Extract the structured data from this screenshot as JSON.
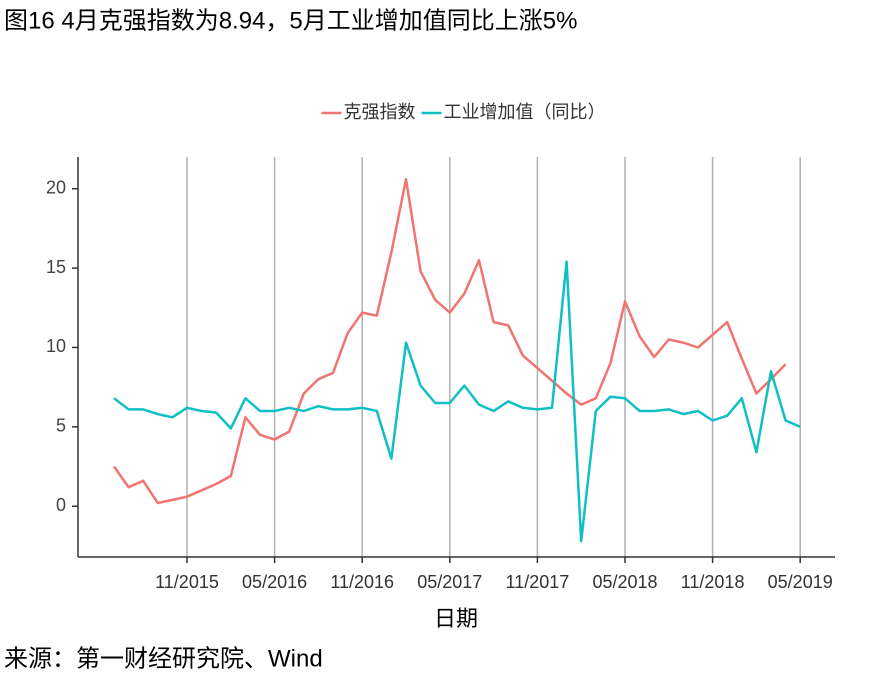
{
  "chart_data": {
    "type": "line",
    "title": "图16 4月克强指数为8.94，5月工业增加值同比上涨5%",
    "x_label": "日期",
    "source": "来源：第一财经研究院、Wind",
    "x": [
      "06/2015",
      "07/2015",
      "08/2015",
      "09/2015",
      "10/2015",
      "11/2015",
      "12/2015",
      "01/2016",
      "02/2016",
      "03/2016",
      "04/2016",
      "05/2016",
      "06/2016",
      "07/2016",
      "08/2016",
      "09/2016",
      "10/2016",
      "11/2016",
      "12/2016",
      "01/2017",
      "02/2017",
      "03/2017",
      "04/2017",
      "05/2017",
      "06/2017",
      "07/2017",
      "08/2017",
      "09/2017",
      "10/2017",
      "11/2017",
      "12/2017",
      "01/2018",
      "02/2018",
      "03/2018",
      "04/2018",
      "05/2018",
      "06/2018",
      "07/2018",
      "08/2018",
      "09/2018",
      "10/2018",
      "11/2018",
      "12/2018",
      "01/2019",
      "02/2019",
      "03/2019",
      "04/2019",
      "05/2019"
    ],
    "xticks": [
      "11/2015",
      "05/2016",
      "11/2016",
      "05/2017",
      "11/2017",
      "05/2018",
      "11/2018",
      "05/2019"
    ],
    "series": [
      {
        "name": "克强指数",
        "color": "#f07470",
        "values": [
          2.5,
          1.2,
          1.6,
          0.2,
          0.4,
          0.6,
          1.0,
          1.4,
          1.9,
          5.6,
          4.5,
          4.2,
          4.7,
          7.1,
          8.0,
          8.4,
          10.9,
          12.2,
          12.0,
          16.0,
          20.6,
          14.8,
          13.0,
          12.2,
          13.4,
          15.5,
          11.6,
          11.4,
          9.5,
          8.7,
          7.9,
          7.1,
          6.4,
          6.8,
          9.0,
          12.9,
          10.7,
          9.4,
          10.5,
          10.3,
          10.0,
          10.8,
          11.6,
          9.3,
          7.1,
          8.0,
          8.94,
          null
        ]
      },
      {
        "name": "工业增加值（同比）",
        "color": "#10bfc4",
        "values": [
          6.8,
          6.1,
          6.1,
          5.8,
          5.6,
          6.2,
          6.0,
          5.9,
          4.9,
          6.8,
          6.0,
          6.0,
          6.2,
          6.0,
          6.3,
          6.1,
          6.1,
          6.2,
          6.0,
          3.0,
          10.3,
          7.6,
          6.5,
          6.5,
          7.6,
          6.4,
          6.0,
          6.6,
          6.2,
          6.1,
          6.2,
          15.4,
          -2.2,
          6.0,
          6.9,
          6.8,
          6.0,
          6.0,
          6.1,
          5.8,
          6.0,
          5.4,
          5.7,
          6.8,
          3.4,
          8.5,
          5.4,
          5.0
        ]
      }
    ],
    "ylim": [
      -3.2,
      22
    ],
    "yticks": [
      0,
      5,
      10,
      15,
      20
    ],
    "grid": "x",
    "legend": "top"
  }
}
